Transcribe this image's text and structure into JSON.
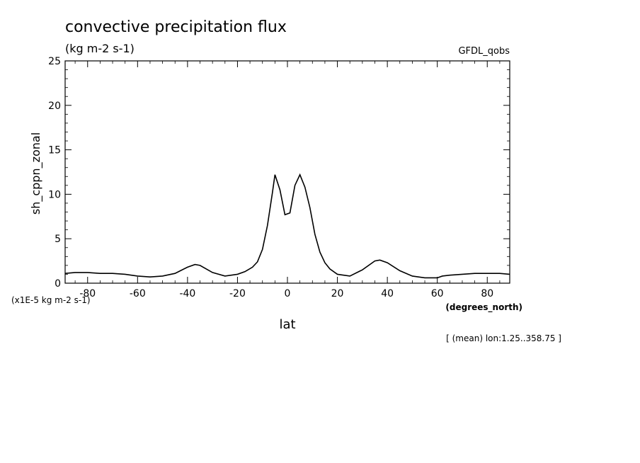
{
  "chart_data": {
    "type": "line",
    "title": "convective precipitation flux",
    "subtitle": "(kg m-2 s-1)",
    "dataset_label": "GFDL_qobs",
    "ylabel": "sh_cppn_zonal",
    "xlabel": "lat",
    "x_units": "(degrees_north)",
    "y_scale_note": "(x1E-5 kg m-2 s-1)",
    "footnote": "[ (mean) lon:1.25..358.75 ]",
    "xlim": [
      -89,
      89
    ],
    "ylim": [
      0,
      25
    ],
    "x_ticks": [
      -80,
      -60,
      -40,
      -20,
      0,
      20,
      40,
      60,
      80
    ],
    "y_ticks": [
      0,
      5,
      10,
      15,
      20,
      25
    ],
    "grid": false,
    "series": [
      {
        "x": [
          -89,
          -85,
          -80,
          -75,
          -70,
          -65,
          -60,
          -55,
          -50,
          -45,
          -40,
          -37,
          -35,
          -30,
          -25,
          -20,
          -17,
          -14,
          -12,
          -10,
          -8,
          -6,
          -5,
          -3,
          -1,
          1,
          3,
          5,
          7,
          9,
          11,
          13,
          15,
          17,
          20,
          25,
          30,
          35,
          37,
          40,
          45,
          50,
          55,
          60,
          62,
          65,
          70,
          75,
          80,
          85,
          89
        ],
        "y": [
          1.1,
          1.2,
          1.2,
          1.1,
          1.1,
          1.0,
          0.8,
          0.7,
          0.8,
          1.1,
          1.8,
          2.1,
          2.0,
          1.2,
          0.8,
          1.0,
          1.3,
          1.8,
          2.4,
          3.8,
          6.5,
          10.2,
          12.2,
          10.5,
          7.7,
          7.9,
          11.0,
          12.2,
          10.8,
          8.5,
          5.5,
          3.5,
          2.3,
          1.6,
          1.0,
          0.8,
          1.5,
          2.5,
          2.6,
          2.3,
          1.4,
          0.8,
          0.6,
          0.6,
          0.8,
          0.9,
          1.0,
          1.1,
          1.1,
          1.1,
          1.0
        ]
      }
    ]
  }
}
